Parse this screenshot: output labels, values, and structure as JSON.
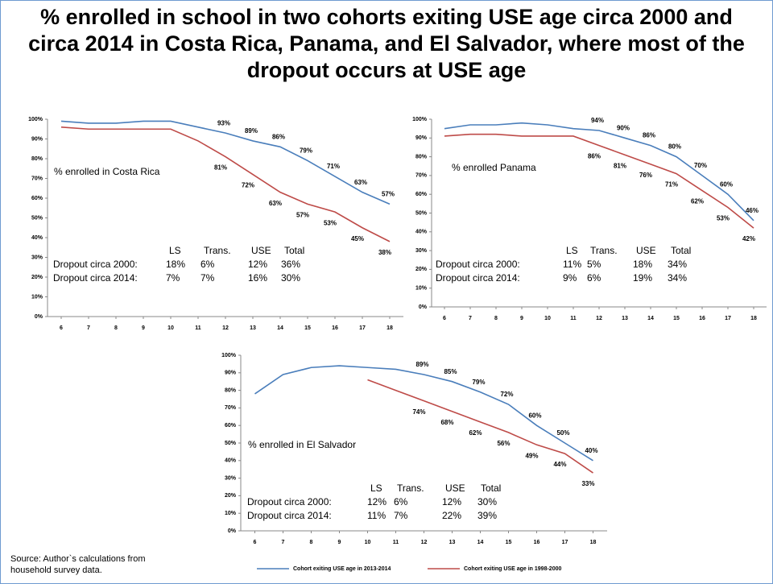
{
  "title": "% enrolled in school in two cohorts exiting USE age circa 2000 and circa 2014 in Costa Rica, Panama, and El Salvador, where most of the dropout occurs at USE age",
  "source": "Source: Author`s calculations from household survey data.",
  "chart_data": [
    {
      "type": "line",
      "annotation": "% enrolled in Costa Rica",
      "x": [
        6,
        7,
        8,
        9,
        10,
        11,
        12,
        13,
        14,
        15,
        16,
        17,
        18
      ],
      "xlim": [
        5.5,
        18.5
      ],
      "xticks": [
        6,
        7,
        8,
        9,
        10,
        11,
        12,
        13,
        14,
        15,
        16,
        17,
        18
      ],
      "ylim": [
        0,
        100
      ],
      "yticks": [
        {
          "value": 0,
          "label": "0%"
        },
        {
          "value": 10,
          "label": "10%"
        },
        {
          "value": 20,
          "label": "20%"
        },
        {
          "value": 30,
          "label": "30%"
        },
        {
          "value": 40,
          "label": "40%"
        },
        {
          "value": 50,
          "label": "50%"
        },
        {
          "value": 60,
          "label": "60%"
        },
        {
          "value": 70,
          "label": "70%"
        },
        {
          "value": 80,
          "label": "80%"
        },
        {
          "value": 90,
          "label": "90%"
        },
        {
          "value": 100,
          "label": "100%"
        }
      ],
      "series": [
        {
          "color": "#4a7ebb",
          "values": [
            99,
            98,
            98,
            99,
            99,
            96,
            93,
            89,
            86,
            79,
            71,
            63,
            57
          ],
          "value_labels": [
            null,
            null,
            null,
            null,
            null,
            null,
            "93%",
            "89%",
            "86%",
            "79%",
            "71%",
            "63%",
            "57%"
          ]
        },
        {
          "color": "#be4b48",
          "values": [
            96,
            95,
            95,
            95,
            95,
            89,
            81,
            72,
            63,
            57,
            53,
            45,
            38
          ],
          "value_labels": [
            null,
            null,
            null,
            null,
            null,
            null,
            "81%",
            "72%",
            "63%",
            "57%",
            "53%",
            "45%",
            "38%"
          ]
        }
      ],
      "table": {
        "header": [
          "LS",
          "Trans.",
          "USE",
          "Total"
        ],
        "rows": [
          [
            "Dropout circa 2000:",
            "18%",
            "6%",
            "12%",
            "36%"
          ],
          [
            "Dropout circa 2014:",
            "7%",
            "7%",
            "16%",
            "30%"
          ]
        ]
      }
    },
    {
      "type": "line",
      "annotation": "% enrolled Panama",
      "x": [
        6,
        7,
        8,
        9,
        10,
        11,
        12,
        13,
        14,
        15,
        16,
        17,
        18
      ],
      "xlim": [
        5.5,
        18.5
      ],
      "xticks": [
        6,
        7,
        8,
        9,
        10,
        11,
        12,
        13,
        14,
        15,
        16,
        17,
        18
      ],
      "ylim": [
        0,
        100
      ],
      "yticks": [
        {
          "value": 0,
          "label": "0%"
        },
        {
          "value": 10,
          "label": "10%"
        },
        {
          "value": 20,
          "label": "20%"
        },
        {
          "value": 30,
          "label": "30%"
        },
        {
          "value": 40,
          "label": "40%"
        },
        {
          "value": 50,
          "label": "50%"
        },
        {
          "value": 60,
          "label": "60%"
        },
        {
          "value": 70,
          "label": "70%"
        },
        {
          "value": 80,
          "label": "80%"
        },
        {
          "value": 90,
          "label": "90%"
        },
        {
          "value": 100,
          "label": "100%"
        }
      ],
      "series": [
        {
          "color": "#4a7ebb",
          "values": [
            95,
            97,
            97,
            98,
            97,
            95,
            94,
            90,
            86,
            80,
            70,
            60,
            46
          ],
          "value_labels": [
            null,
            null,
            null,
            null,
            null,
            null,
            "94%",
            "90%",
            "86%",
            "80%",
            "70%",
            "60%",
            "46%"
          ]
        },
        {
          "color": "#be4b48",
          "values": [
            91,
            92,
            92,
            91,
            91,
            91,
            86,
            81,
            76,
            71,
            62,
            53,
            42
          ],
          "value_labels": [
            null,
            null,
            null,
            null,
            null,
            null,
            "86%",
            "81%",
            "76%",
            "71%",
            "62%",
            "53%",
            "42%"
          ]
        }
      ],
      "table": {
        "header": [
          "LS",
          "Trans.",
          "USE",
          "Total"
        ],
        "rows": [
          [
            "Dropout circa 2000:",
            "11%",
            "5%",
            "18%",
            "34%"
          ],
          [
            "Dropout circa 2014:",
            "9%",
            "6%",
            "19%",
            "34%"
          ]
        ]
      }
    },
    {
      "type": "line",
      "annotation": "% enrolled in El Salvador",
      "x": [
        6,
        7,
        8,
        9,
        10,
        11,
        12,
        13,
        14,
        15,
        16,
        17,
        18
      ],
      "xlim": [
        5.5,
        18.5
      ],
      "xticks": [
        6,
        7,
        8,
        9,
        10,
        11,
        12,
        13,
        14,
        15,
        16,
        17,
        18
      ],
      "ylim": [
        0,
        100
      ],
      "yticks": [
        {
          "value": 0,
          "label": "0%"
        },
        {
          "value": 10,
          "label": "10%"
        },
        {
          "value": 20,
          "label": "20%"
        },
        {
          "value": 30,
          "label": "30%"
        },
        {
          "value": 40,
          "label": "40%"
        },
        {
          "value": 50,
          "label": "50%"
        },
        {
          "value": 60,
          "label": "60%"
        },
        {
          "value": 70,
          "label": "70%"
        },
        {
          "value": 80,
          "label": "80%"
        },
        {
          "value": 90,
          "label": "90%"
        },
        {
          "value": 100,
          "label": "100%"
        }
      ],
      "series": [
        {
          "name": "Cohort exiting USE age in 2013-2014",
          "color": "#4a7ebb",
          "values": [
            78,
            89,
            93,
            94,
            93,
            92,
            89,
            85,
            79,
            72,
            60,
            50,
            40
          ],
          "value_labels": [
            null,
            null,
            null,
            null,
            null,
            null,
            "89%",
            "85%",
            "79%",
            "72%",
            "60%",
            "50%",
            "40%"
          ]
        },
        {
          "name": "Cohort exiting USE age in 1998-2000",
          "color": "#be4b48",
          "values": [
            null,
            null,
            null,
            null,
            86,
            80,
            74,
            68,
            62,
            56,
            49,
            44,
            33
          ],
          "value_labels": [
            null,
            null,
            null,
            null,
            null,
            null,
            "74%",
            "68%",
            "62%",
            "56%",
            "49%",
            "44%",
            "33%"
          ]
        }
      ],
      "table": {
        "header": [
          "LS",
          "Trans.",
          "USE",
          "Total"
        ],
        "rows": [
          [
            "Dropout circa 2000:",
            "12%",
            "6%",
            "12%",
            "30%"
          ],
          [
            "Dropout circa 2014:",
            "11%",
            "7%",
            "22%",
            "39%"
          ]
        ]
      }
    }
  ]
}
